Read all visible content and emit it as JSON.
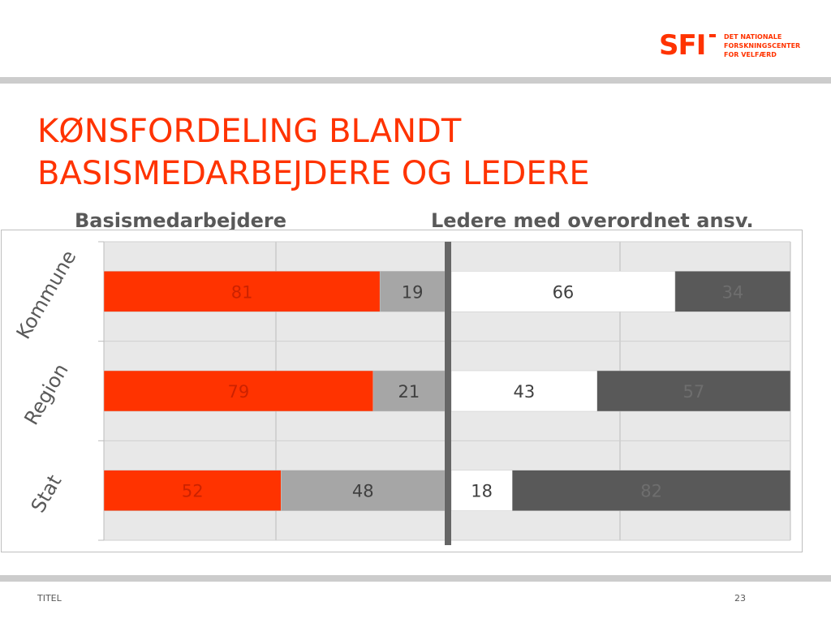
{
  "logo": {
    "mark": "SFI",
    "lines": [
      "DET NATIONALE",
      "FORSKNINGSCENTER",
      "FOR VELFÆRD"
    ]
  },
  "title": {
    "line1": "KØNSFORDELING BLANDT",
    "line2": "BASISMEDARBEJDERE OG LEDERE"
  },
  "footer": {
    "left": "TITEL",
    "page_number": "23"
  },
  "colors": {
    "accent": "#ff3300",
    "light_gray": "#a6a6a6",
    "white_segment": "#ffffff",
    "dark_gray": "#595959",
    "plot_background": "#e8e8e8",
    "divider": "#666666"
  },
  "chart_data": {
    "type": "bar",
    "orientation": "horizontal",
    "stacked": true,
    "grid": true,
    "categories": [
      "Kommune",
      "Region",
      "Stat"
    ],
    "panels": [
      {
        "title": "Basismedarbejdere",
        "series": [
          {
            "color": "#ff3300",
            "label_color": "#cc2200",
            "values": [
              81,
              79,
              52
            ]
          },
          {
            "color": "#a6a6a6",
            "label_color": "#404040",
            "values": [
              19,
              21,
              48
            ]
          }
        ]
      },
      {
        "title": "Ledere med overordnet ansv.",
        "series": [
          {
            "color": "#ffffff",
            "label_color": "#404040",
            "values": [
              66,
              43,
              18
            ]
          },
          {
            "color": "#595959",
            "label_color": "#6e6e6e",
            "values": [
              34,
              57,
              82
            ]
          }
        ]
      }
    ]
  }
}
